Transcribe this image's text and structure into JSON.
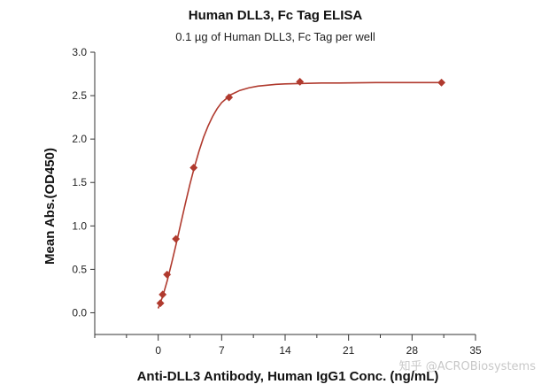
{
  "chart_data": {
    "type": "scatter",
    "title": "Human DLL3, Fc Tag ELISA",
    "subtitle": "0.1 µg of Human DLL3, Fc Tag per well",
    "xlabel": "Anti-DLL3 Antibody, Human IgG1 Conc. (ng/mL)",
    "ylabel": "Mean Abs.(OD450)",
    "xlim": [
      -7,
      35
    ],
    "ylim": [
      -0.25,
      3.0
    ],
    "xticks": [
      0,
      7,
      14,
      21,
      28,
      35
    ],
    "yticks": [
      "0.0",
      "0.5",
      "1.0",
      "1.5",
      "2.0",
      "2.5",
      "3.0"
    ],
    "grid": false,
    "series": [
      {
        "marker": "diamond",
        "color": "#b03a2e",
        "x": [
          0.24,
          0.49,
          0.98,
          1.95,
          3.91,
          7.81,
          15.63,
          31.25
        ],
        "y": [
          0.11,
          0.21,
          0.44,
          0.85,
          1.67,
          2.48,
          2.66,
          2.65
        ]
      }
    ],
    "fit_curve": {
      "color": "#b03a2e",
      "x": [
        0,
        0.5,
        1,
        1.5,
        2,
        2.5,
        3,
        3.5,
        4,
        4.5,
        5,
        5.5,
        6,
        6.5,
        7,
        8,
        9,
        10,
        11,
        12,
        13,
        14,
        16,
        18,
        20,
        22,
        24,
        26,
        28,
        31.25
      ],
      "y": [
        0.05,
        0.19,
        0.37,
        0.58,
        0.8,
        1.03,
        1.26,
        1.48,
        1.68,
        1.86,
        2.02,
        2.15,
        2.26,
        2.35,
        2.42,
        2.51,
        2.56,
        2.59,
        2.61,
        2.62,
        2.63,
        2.635,
        2.64,
        2.645,
        2.645,
        2.648,
        2.65,
        2.65,
        2.65,
        2.65
      ]
    }
  },
  "watermark": "知乎 @ACROBiosystems"
}
